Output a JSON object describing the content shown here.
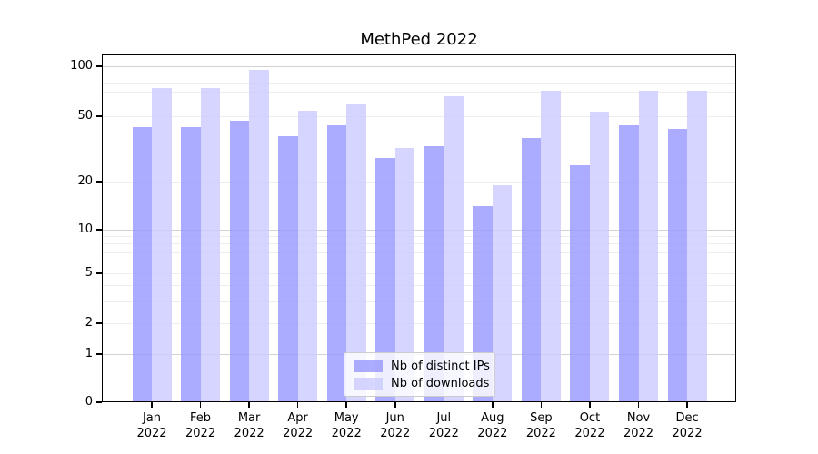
{
  "title": "MethPed 2022",
  "chart_data": {
    "type": "bar",
    "title": "MethPed 2022",
    "categories": [
      "Jan",
      "Feb",
      "Mar",
      "Apr",
      "May",
      "Jun",
      "Jul",
      "Aug",
      "Sep",
      "Oct",
      "Nov",
      "Dec"
    ],
    "x_year_label": "2022",
    "series": [
      {
        "name": "Nb of distinct IPs",
        "color": "rgba(153,153,255,0.82)",
        "values": [
          43,
          43,
          47,
          38,
          44,
          28,
          33,
          14,
          37,
          25,
          44,
          42
        ]
      },
      {
        "name": "Nb of downloads",
        "color": "rgba(204,204,255,0.82)",
        "values": [
          74,
          74,
          95,
          54,
          59,
          32,
          66,
          19,
          71,
          53,
          71,
          71
        ]
      }
    ],
    "yscale": "symlog",
    "yticks": [
      0,
      1,
      2,
      5,
      10,
      20,
      50,
      100
    ],
    "yticks_minor": [
      3,
      4,
      6,
      7,
      8,
      9,
      30,
      40,
      60,
      70,
      80,
      90
    ],
    "yticks_major_gridlines": [
      1,
      10,
      100
    ],
    "ylim": [
      0,
      115
    ],
    "grid": true,
    "legend_position": "lower center",
    "xlabel": "",
    "ylabel": ""
  },
  "colors": {
    "background": "#ffffff",
    "spine": "#000000",
    "grid_major": "#d2d2d2",
    "grid_minor": "#ededed",
    "text": "#000000",
    "legend_border": "#cccccc",
    "legend_background": "rgba(255,255,255,0.8)"
  }
}
